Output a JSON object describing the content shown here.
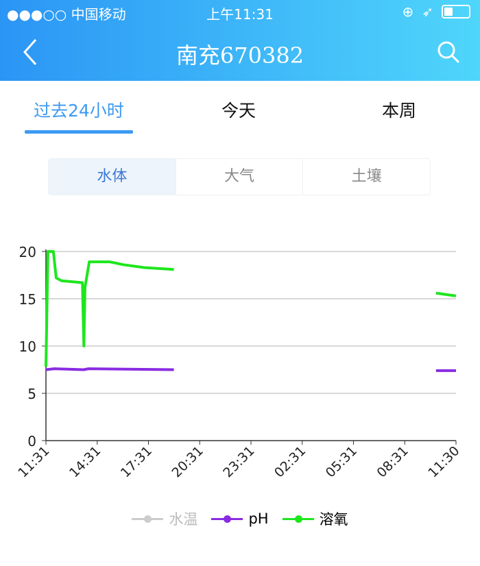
{
  "status_bar": {
    "carrier": "●●●○○ 中国移动",
    "time": "上午11:31"
  },
  "header": {
    "title": "南充670382"
  },
  "time_tabs": [
    {
      "label": "过去24小时",
      "active": true
    },
    {
      "label": "今天",
      "active": false
    },
    {
      "label": "本周",
      "active": false
    }
  ],
  "category_tabs": [
    {
      "label": "水体",
      "active": true
    },
    {
      "label": "大气",
      "active": false
    },
    {
      "label": "土壤",
      "active": false
    }
  ],
  "colors": {
    "header_start": "#2b95f5",
    "header_end": "#4fd6fb",
    "accent": "#3d9af0"
  },
  "chart_data": {
    "type": "line",
    "x_ticks": [
      "11:31",
      "14:31",
      "17:31",
      "20:31",
      "23:31",
      "02:31",
      "05:31",
      "08:31",
      "11:30"
    ],
    "y_ticks": [
      "0",
      "5",
      "10",
      "15",
      "20"
    ],
    "ylim": [
      0,
      20
    ],
    "grid": true,
    "legend_position": "bottom",
    "series": [
      {
        "name": "水温",
        "color": "#cccccc",
        "segments": []
      },
      {
        "name": "pH",
        "color": "#8a2be2",
        "segments": [
          [
            [
              "11:31",
              7.5
            ],
            [
              "12:00",
              7.6
            ],
            [
              "13:44",
              7.5
            ],
            [
              "14:00",
              7.6
            ],
            [
              "19:00",
              7.5
            ]
          ],
          [
            [
              "10:20",
              7.4
            ],
            [
              "11:30",
              7.4
            ]
          ]
        ]
      },
      {
        "name": "溶氧",
        "color": "#1ee61e",
        "segments": [
          [
            [
              "11:31",
              7.8
            ],
            [
              "11:38",
              20
            ],
            [
              "11:57",
              20
            ],
            [
              "12:07",
              17.2
            ],
            [
              "12:26",
              16.9
            ],
            [
              "13:39",
              16.7
            ],
            [
              "13:44",
              10
            ],
            [
              "13:48",
              16.2
            ],
            [
              "14:03",
              18.9
            ],
            [
              "15:15",
              18.9
            ],
            [
              "16:03",
              18.6
            ],
            [
              "17:16",
              18.3
            ],
            [
              "19:00",
              18.1
            ]
          ],
          [
            [
              "10:20",
              15.6
            ],
            [
              "11:30",
              15.3
            ]
          ]
        ]
      }
    ]
  }
}
